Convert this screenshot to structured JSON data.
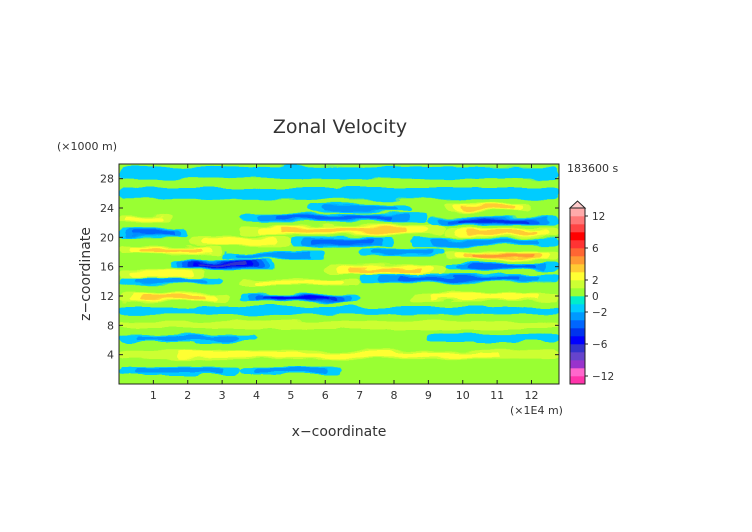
{
  "chart_data": {
    "type": "heatmap",
    "title": "Zonal Velocity",
    "xlabel": "x−coordinate",
    "ylabel": "z−coordinate",
    "x_unit_label": "(×1E4 m)",
    "y_unit_label": "(×1000 m)",
    "time_label": "183600 s",
    "xlim": [
      0,
      12.8
    ],
    "ylim": [
      0,
      30
    ],
    "x_ticks": [
      "1",
      "2",
      "3",
      "4",
      "5",
      "6",
      "7",
      "8",
      "9",
      "10",
      "11",
      "12"
    ],
    "y_ticks": [
      "4",
      "8",
      "12",
      "16",
      "20",
      "24",
      "28"
    ],
    "colorbar": {
      "tick_labels": [
        "12",
        "6",
        "2",
        "0",
        "−2",
        "−6",
        "−12"
      ],
      "levels": [
        -14,
        -12,
        -10,
        -8,
        -7,
        -6,
        -5,
        -4,
        -3,
        -2,
        -1,
        0,
        1,
        2,
        3,
        4,
        5,
        6,
        7,
        8,
        10,
        12,
        14
      ],
      "colors": [
        "#ff33aa",
        "#ff66cc",
        "#9933cc",
        "#6644cc",
        "#3333cc",
        "#0000ff",
        "#0033ee",
        "#0066ff",
        "#0099ff",
        "#00ccff",
        "#00eecc",
        "#99ff33",
        "#ccff33",
        "#ffff33",
        "#ffcc33",
        "#ff9933",
        "#ff6633",
        "#ff3333",
        "#ff0000",
        "#ff4444",
        "#ff7777",
        "#ffaaaa"
      ]
    },
    "bands": [
      {
        "x0": 0.0,
        "x1": 3.5,
        "z": 1.8,
        "w": 0.5,
        "v": -2.5
      },
      {
        "x0": 3.5,
        "x1": 6.5,
        "z": 1.8,
        "w": 0.5,
        "v": -2.5
      },
      {
        "x0": 0.0,
        "x1": 12.8,
        "z": 4.0,
        "w": 0.6,
        "v": 2.5
      },
      {
        "x0": 0.0,
        "x1": 4.0,
        "z": 6.3,
        "w": 0.5,
        "v": -2.2
      },
      {
        "x0": 9.0,
        "x1": 12.8,
        "z": 6.3,
        "w": 0.5,
        "v": -1.8
      },
      {
        "x0": 0.0,
        "x1": 12.8,
        "z": 8.0,
        "w": 0.5,
        "v": 1.5
      },
      {
        "x0": 0.0,
        "x1": 12.8,
        "z": 10.0,
        "w": 0.5,
        "v": -1.5
      },
      {
        "x0": 0.0,
        "x1": 3.2,
        "z": 11.8,
        "w": 0.6,
        "v": 3.0
      },
      {
        "x0": 3.5,
        "x1": 7.0,
        "z": 11.8,
        "w": 0.6,
        "v": -5.0
      },
      {
        "x0": 8.5,
        "x1": 12.8,
        "z": 11.9,
        "w": 0.5,
        "v": 2.8
      },
      {
        "x0": 0.0,
        "x1": 3.0,
        "z": 14.1,
        "w": 0.5,
        "v": -2.3
      },
      {
        "x0": 3.5,
        "x1": 7.0,
        "z": 13.8,
        "w": 0.5,
        "v": 2.5
      },
      {
        "x0": 7.0,
        "x1": 12.8,
        "z": 14.4,
        "w": 0.6,
        "v": -3.5
      },
      {
        "x0": 0.0,
        "x1": 2.5,
        "z": 15.0,
        "w": 0.5,
        "v": 2.5
      },
      {
        "x0": 1.5,
        "x1": 4.5,
        "z": 16.3,
        "w": 0.6,
        "v": -6.0
      },
      {
        "x0": 6.0,
        "x1": 9.5,
        "z": 15.6,
        "w": 0.6,
        "v": 3.8
      },
      {
        "x0": 9.5,
        "x1": 12.8,
        "z": 16.0,
        "w": 0.5,
        "v": -3.0
      },
      {
        "x0": 0.0,
        "x1": 3.0,
        "z": 18.2,
        "w": 0.6,
        "v": 3.5
      },
      {
        "x0": 3.0,
        "x1": 6.0,
        "z": 17.5,
        "w": 0.5,
        "v": -2.5
      },
      {
        "x0": 7.0,
        "x1": 9.5,
        "z": 18.0,
        "w": 0.5,
        "v": -2.5
      },
      {
        "x0": 9.5,
        "x1": 12.8,
        "z": 17.5,
        "w": 0.6,
        "v": 4.0
      },
      {
        "x0": 0.0,
        "x1": 2.0,
        "z": 20.7,
        "w": 0.6,
        "v": -3.5
      },
      {
        "x0": 2.0,
        "x1": 5.0,
        "z": 19.5,
        "w": 0.6,
        "v": 2.8
      },
      {
        "x0": 5.0,
        "x1": 8.0,
        "z": 19.4,
        "w": 0.6,
        "v": -3.5
      },
      {
        "x0": 8.5,
        "x1": 12.8,
        "z": 19.3,
        "w": 0.5,
        "v": -2.8
      },
      {
        "x0": 3.5,
        "x1": 9.5,
        "z": 21.0,
        "w": 0.7,
        "v": 3.5
      },
      {
        "x0": 9.5,
        "x1": 12.8,
        "z": 20.6,
        "w": 0.6,
        "v": 3.0
      },
      {
        "x0": 3.5,
        "x1": 9.0,
        "z": 22.7,
        "w": 0.6,
        "v": -3.2
      },
      {
        "x0": 9.0,
        "x1": 12.8,
        "z": 22.2,
        "w": 0.6,
        "v": -4.5
      },
      {
        "x0": 0.0,
        "x1": 1.5,
        "z": 22.5,
        "w": 0.5,
        "v": 2.0
      },
      {
        "x0": 5.5,
        "x1": 8.5,
        "z": 24.0,
        "w": 0.5,
        "v": -2.0
      },
      {
        "x0": 9.5,
        "x1": 12.0,
        "z": 24.0,
        "w": 0.5,
        "v": 3.0
      },
      {
        "x0": 0.0,
        "x1": 12.8,
        "z": 26.0,
        "w": 0.8,
        "v": -0.8
      },
      {
        "x0": 0.0,
        "x1": 12.8,
        "z": 28.8,
        "w": 0.8,
        "v": -0.6
      }
    ]
  }
}
